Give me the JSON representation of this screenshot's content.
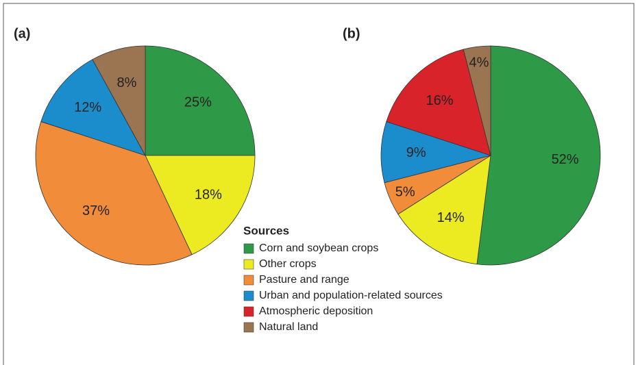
{
  "chart_data": [
    {
      "type": "pie",
      "title": "(a)",
      "categories": [
        "Corn and soybean crops",
        "Other crops",
        "Pasture and range",
        "Urban and population-related sources",
        "Natural land"
      ],
      "values": [
        25,
        18,
        37,
        12,
        8
      ],
      "value_labels": [
        "25%",
        "18%",
        "37%",
        "12%",
        "8%"
      ],
      "colors": [
        "#2e9a48",
        "#ecea21",
        "#f08c3a",
        "#1b8dcc",
        "#9b7452"
      ]
    },
    {
      "type": "pie",
      "title": "(b)",
      "legend_title": "Sources",
      "categories": [
        "Corn and soybean crops",
        "Other crops",
        "Pasture and range",
        "Urban and population-related sources",
        "Atmospheric deposition",
        "Natural land"
      ],
      "values": [
        52,
        14,
        5,
        9,
        16,
        4
      ],
      "value_labels": [
        "52%",
        "14%",
        "5%",
        "9%",
        "16%",
        "4%"
      ],
      "colors": [
        "#2e9a48",
        "#ecea21",
        "#f08c3a",
        "#1b8dcc",
        "#d8232a",
        "#9b7452"
      ]
    }
  ]
}
